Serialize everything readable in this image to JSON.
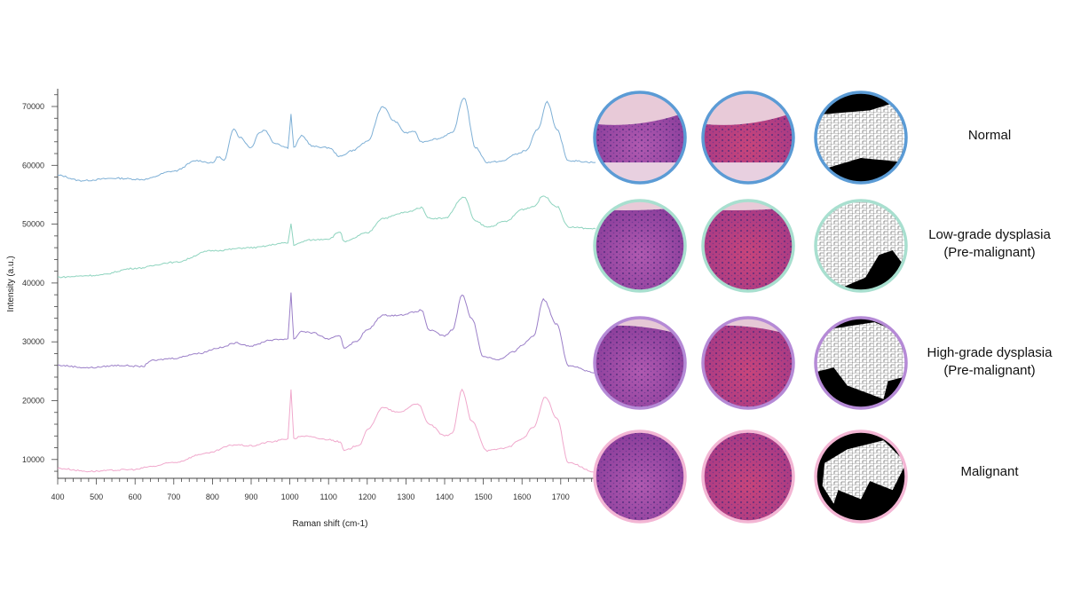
{
  "chart_data": {
    "type": "line",
    "title": "",
    "xlabel": "Raman shift (cm-1)",
    "ylabel": "Intensity (a.u.)",
    "xlim": [
      400,
      1800
    ],
    "ylim": [
      6800,
      73000
    ],
    "xticks": [
      400,
      500,
      600,
      700,
      800,
      900,
      1000,
      1100,
      1200,
      1300,
      1400,
      1500,
      1600,
      1700
    ],
    "yticks": [
      10000,
      20000,
      30000,
      40000,
      50000,
      60000,
      70000
    ],
    "grid": false,
    "series": [
      {
        "name": "Normal",
        "color": "#7fb0d6",
        "points": [
          [
            400,
            58300
          ],
          [
            460,
            57400
          ],
          [
            550,
            57800
          ],
          [
            620,
            57600
          ],
          [
            700,
            59000
          ],
          [
            760,
            60800
          ],
          [
            800,
            60400
          ],
          [
            815,
            61500
          ],
          [
            830,
            60800
          ],
          [
            855,
            66300
          ],
          [
            870,
            64800
          ],
          [
            900,
            63000
          ],
          [
            920,
            65500
          ],
          [
            935,
            66000
          ],
          [
            960,
            63800
          ],
          [
            995,
            63000
          ],
          [
            1003,
            68700
          ],
          [
            1010,
            63000
          ],
          [
            1030,
            65000
          ],
          [
            1060,
            63200
          ],
          [
            1100,
            63000
          ],
          [
            1130,
            61500
          ],
          [
            1160,
            62500
          ],
          [
            1200,
            64000
          ],
          [
            1240,
            70000
          ],
          [
            1270,
            67500
          ],
          [
            1300,
            65500
          ],
          [
            1320,
            65800
          ],
          [
            1340,
            64000
          ],
          [
            1380,
            64500
          ],
          [
            1420,
            65500
          ],
          [
            1450,
            71500
          ],
          [
            1480,
            63000
          ],
          [
            1510,
            60500
          ],
          [
            1550,
            60700
          ],
          [
            1580,
            61800
          ],
          [
            1610,
            62500
          ],
          [
            1640,
            66000
          ],
          [
            1665,
            70800
          ],
          [
            1690,
            66000
          ],
          [
            1720,
            60800
          ],
          [
            1790,
            60500
          ]
        ]
      },
      {
        "name": "Low-grade dysplasia (Pre-malignant)",
        "color": "#8fd4bf",
        "points": [
          [
            400,
            41000
          ],
          [
            500,
            41300
          ],
          [
            600,
            42500
          ],
          [
            700,
            43500
          ],
          [
            800,
            45500
          ],
          [
            900,
            46000
          ],
          [
            995,
            46800
          ],
          [
            1003,
            50100
          ],
          [
            1010,
            46500
          ],
          [
            1050,
            47300
          ],
          [
            1100,
            47500
          ],
          [
            1130,
            48700
          ],
          [
            1140,
            47000
          ],
          [
            1200,
            48500
          ],
          [
            1240,
            51000
          ],
          [
            1300,
            52000
          ],
          [
            1340,
            52800
          ],
          [
            1360,
            51000
          ],
          [
            1400,
            51000
          ],
          [
            1450,
            54600
          ],
          [
            1480,
            50500
          ],
          [
            1510,
            49500
          ],
          [
            1560,
            50500
          ],
          [
            1600,
            52500
          ],
          [
            1630,
            53000
          ],
          [
            1655,
            54800
          ],
          [
            1690,
            53000
          ],
          [
            1720,
            49500
          ],
          [
            1790,
            49200
          ]
        ]
      },
      {
        "name": "High-grade dysplasia (Pre-malignant)",
        "color": "#9b7fc8",
        "points": [
          [
            400,
            26000
          ],
          [
            480,
            25600
          ],
          [
            560,
            26000
          ],
          [
            620,
            25800
          ],
          [
            640,
            26800
          ],
          [
            700,
            27200
          ],
          [
            760,
            28000
          ],
          [
            820,
            29000
          ],
          [
            860,
            29800
          ],
          [
            900,
            29300
          ],
          [
            950,
            30300
          ],
          [
            995,
            30500
          ],
          [
            1003,
            38300
          ],
          [
            1010,
            30500
          ],
          [
            1030,
            31800
          ],
          [
            1060,
            31500
          ],
          [
            1100,
            30500
          ],
          [
            1130,
            31000
          ],
          [
            1140,
            29000
          ],
          [
            1170,
            30000
          ],
          [
            1200,
            32000
          ],
          [
            1240,
            34500
          ],
          [
            1280,
            34500
          ],
          [
            1320,
            35000
          ],
          [
            1340,
            35400
          ],
          [
            1360,
            32000
          ],
          [
            1400,
            31000
          ],
          [
            1420,
            32000
          ],
          [
            1445,
            38000
          ],
          [
            1470,
            34000
          ],
          [
            1500,
            27500
          ],
          [
            1540,
            27000
          ],
          [
            1580,
            28300
          ],
          [
            1600,
            29500
          ],
          [
            1630,
            31000
          ],
          [
            1655,
            37200
          ],
          [
            1690,
            33000
          ],
          [
            1720,
            26000
          ],
          [
            1790,
            24700
          ]
        ]
      },
      {
        "name": "Malignant",
        "color": "#f0a8cc",
        "points": [
          [
            400,
            8500
          ],
          [
            480,
            8000
          ],
          [
            600,
            8300
          ],
          [
            640,
            8800
          ],
          [
            700,
            9500
          ],
          [
            780,
            11000
          ],
          [
            860,
            12500
          ],
          [
            900,
            12300
          ],
          [
            950,
            13000
          ],
          [
            995,
            13500
          ],
          [
            1003,
            22000
          ],
          [
            1010,
            13500
          ],
          [
            1030,
            14000
          ],
          [
            1100,
            13400
          ],
          [
            1130,
            13000
          ],
          [
            1140,
            11500
          ],
          [
            1180,
            12500
          ],
          [
            1200,
            15000
          ],
          [
            1240,
            18800
          ],
          [
            1280,
            18000
          ],
          [
            1330,
            19500
          ],
          [
            1360,
            16000
          ],
          [
            1400,
            14000
          ],
          [
            1420,
            14500
          ],
          [
            1445,
            21800
          ],
          [
            1470,
            16500
          ],
          [
            1510,
            11500
          ],
          [
            1560,
            12000
          ],
          [
            1600,
            13500
          ],
          [
            1630,
            15500
          ],
          [
            1660,
            20600
          ],
          [
            1690,
            17000
          ],
          [
            1720,
            9500
          ],
          [
            1790,
            7800
          ]
        ]
      }
    ]
  },
  "rows": [
    {
      "label_lines": [
        "Normal"
      ],
      "border": "#5b9bd5"
    },
    {
      "label_lines": [
        "Low-grade dysplasia",
        "(Pre-malignant)"
      ],
      "border": "#a8dfcf"
    },
    {
      "label_lines": [
        "High-grade dysplasia",
        "(Pre-malignant)"
      ],
      "border": "#b58ad6"
    },
    {
      "label_lines": [
        "Malignant"
      ],
      "border": "#f3b6d4"
    }
  ],
  "image_columns": [
    "he-stain-image",
    "stain-normalized-image",
    "segmentation-mask-image"
  ]
}
